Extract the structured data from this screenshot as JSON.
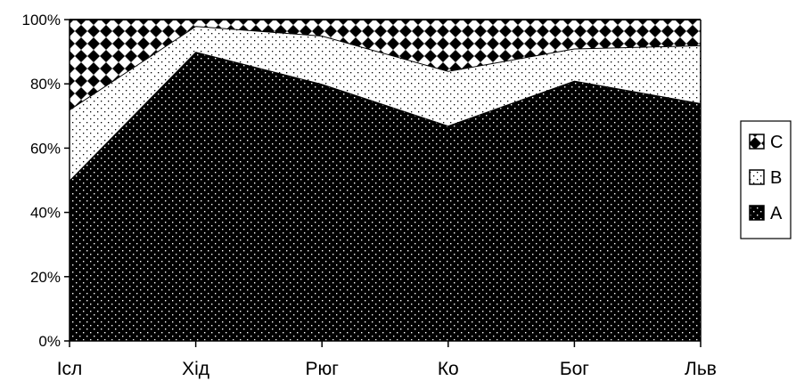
{
  "chart_data": {
    "type": "area",
    "stacked": "percent",
    "categories": [
      "Ісл",
      "Хід",
      "Рюг",
      "Ко",
      "Бог",
      "Льв"
    ],
    "series": [
      {
        "name": "A",
        "values": [
          50,
          90,
          80,
          67,
          81,
          74
        ],
        "fill": "dark-dotted"
      },
      {
        "name": "B",
        "values": [
          22,
          8,
          15,
          17,
          10,
          18
        ],
        "fill": "light-dotted"
      },
      {
        "name": "C",
        "values": [
          28,
          2,
          5,
          16,
          9,
          8
        ],
        "fill": "checkered"
      }
    ],
    "ylim": [
      0,
      100
    ],
    "y_ticks": [
      "0%",
      "20%",
      "40%",
      "60%",
      "80%",
      "100%"
    ],
    "legend": {
      "placement": "right",
      "order": [
        "C",
        "B",
        "A"
      ]
    },
    "grid": false,
    "colors": {
      "dark": "#000000",
      "light": "#ffffff",
      "line": "#000000"
    }
  }
}
